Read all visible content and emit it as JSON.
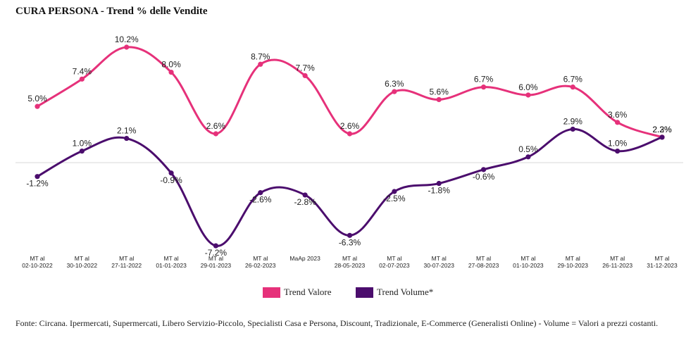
{
  "title": "CURA PERSONA - Trend % delle Vendite",
  "source_note": "Fonte: Circana. Ipermercati, Supermercati, Libero Servizio-Piccolo, Specialisti Casa e Persona, Discount, Tradizionale, E-Commerce (Generalisti Online) - Volume = Valori a prezzi costanti.",
  "colors": {
    "trend_valore": "#e6317a",
    "trend_volume": "#4b0d6d",
    "baseline": "#d9d9d9"
  },
  "chart_data": {
    "type": "line",
    "title": "CURA PERSONA - Trend % delle Vendite",
    "categories": [
      [
        "MT al",
        "02-10-2022"
      ],
      [
        "MT al",
        "30-10-2022"
      ],
      [
        "MT al",
        "27-11-2022"
      ],
      [
        "MT al",
        "01-01-2023"
      ],
      [
        "MT al",
        "29-01-2023"
      ],
      [
        "MT al",
        "26-02-2023"
      ],
      [
        "MaAp 2023"
      ],
      [
        "MT al",
        "28-05-2023"
      ],
      [
        "MT al",
        "02-07-2023"
      ],
      [
        "MT al",
        "30-07-2023"
      ],
      [
        "MT al",
        "27-08-2023"
      ],
      [
        "MT al",
        "01-10-2023"
      ],
      [
        "MT al",
        "29-10-2023"
      ],
      [
        "MT al",
        "26-11-2023"
      ],
      [
        "MT al",
        "31-12-2023"
      ]
    ],
    "series": [
      {
        "name": "Trend Valore",
        "values": [
          5.0,
          7.4,
          10.2,
          8.0,
          2.6,
          8.7,
          7.7,
          2.6,
          6.3,
          5.6,
          6.7,
          6.0,
          6.7,
          3.6,
          2.3
        ],
        "labels": [
          "5.0%",
          "7.4%",
          "10.2%",
          "8.0%",
          "2.6%",
          "8.7%",
          "7.7%",
          "2.6%",
          "6.3%",
          "5.6%",
          "6.7%",
          "6.0%",
          "6.7%",
          "3.6%",
          "2.3%"
        ]
      },
      {
        "name": "Trend Volume*",
        "values": [
          -1.2,
          1.0,
          2.1,
          -0.9,
          -7.2,
          -2.6,
          -2.8,
          -6.3,
          -2.5,
          -1.8,
          -0.6,
          0.5,
          2.9,
          1.0,
          2.2
        ],
        "labels": [
          "-1.2%",
          "1.0%",
          "2.1%",
          "-0.9%",
          "-7.2%",
          "-2.6%",
          "-2.8%",
          "-6.3%",
          "-2.5%",
          "-1.8%",
          "-0.6%",
          "0.5%",
          "2.9%",
          "1.0%",
          "2.2%"
        ]
      }
    ],
    "ylim": [
      -7.2,
      10.2
    ],
    "grid": false,
    "legend_position": "bottom"
  }
}
